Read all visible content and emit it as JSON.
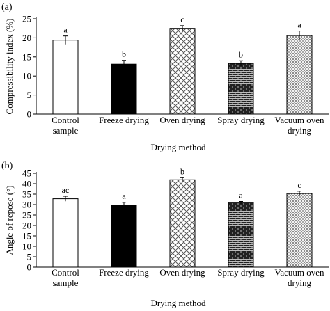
{
  "chart_data": [
    {
      "panel_label": "(a)",
      "type": "bar",
      "categories": [
        "Control sample",
        "Freeze drying",
        "Oven drying",
        "Spray drying",
        "Vacuum oven drying"
      ],
      "category_lines": [
        [
          "Control",
          "sample"
        ],
        [
          "Freeze drying"
        ],
        [
          "Oven drying"
        ],
        [
          "Spray drying"
        ],
        [
          "Vacuum oven",
          "drying"
        ]
      ],
      "values": [
        19.4,
        13.1,
        22.5,
        13.3,
        20.6
      ],
      "errors": [
        1.1,
        1.0,
        0.7,
        0.7,
        1.2
      ],
      "significance_letters": [
        "a",
        "b",
        "c",
        "b",
        "a"
      ],
      "patterns": [
        "white",
        "black",
        "diamond",
        "brick",
        "dots"
      ],
      "xlabel": "Drying method",
      "ylabel": "Compressibility index (%)",
      "ylim": [
        0,
        25
      ],
      "yticks": [
        0,
        5,
        10,
        15,
        20,
        25
      ]
    },
    {
      "panel_label": "(b)",
      "type": "bar",
      "categories": [
        "Control sample",
        "Freeze drying",
        "Oven drying",
        "Spray drying",
        "Vacuum oven drying"
      ],
      "category_lines": [
        [
          "Control",
          "sample"
        ],
        [
          "Freeze drying"
        ],
        [
          "Oven drying"
        ],
        [
          "Spray drying"
        ],
        [
          "Vacuum oven",
          "drying"
        ]
      ],
      "values": [
        32.8,
        29.8,
        41.9,
        30.9,
        35.3
      ],
      "errors": [
        1.2,
        1.3,
        1.0,
        0.6,
        1.1
      ],
      "significance_letters": [
        "ac",
        "a",
        "b",
        "a",
        "c"
      ],
      "patterns": [
        "white",
        "black",
        "diamond",
        "brick",
        "dots"
      ],
      "xlabel": "Drying method",
      "ylabel": "Angle of repose (°)",
      "ylim": [
        0,
        45
      ],
      "yticks": [
        0,
        5,
        10,
        15,
        20,
        25,
        30,
        35,
        40,
        45
      ]
    }
  ]
}
